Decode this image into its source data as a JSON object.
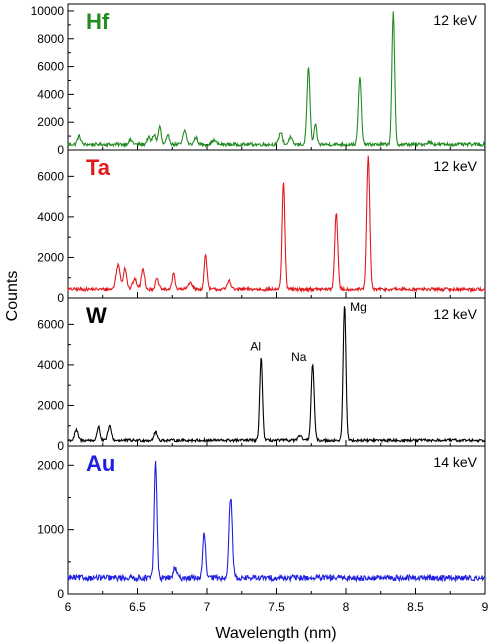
{
  "chart_data": [
    {
      "type": "line",
      "panel": "Hf",
      "element_label": "Hf",
      "energy": "12 keV",
      "color": "#228B22",
      "xlim": [
        6,
        9
      ],
      "ylim": [
        0,
        10500
      ],
      "yticks": [
        0,
        2000,
        4000,
        6000,
        8000,
        10000
      ],
      "baseline": 400,
      "noise": 120,
      "peaks": [
        {
          "x": 6.08,
          "y": 600,
          "w": 0.012
        },
        {
          "x": 6.45,
          "y": 300,
          "w": 0.015
        },
        {
          "x": 6.58,
          "y": 500,
          "w": 0.012
        },
        {
          "x": 6.62,
          "y": 700,
          "w": 0.012
        },
        {
          "x": 6.66,
          "y": 1300,
          "w": 0.01
        },
        {
          "x": 6.72,
          "y": 600,
          "w": 0.012
        },
        {
          "x": 6.84,
          "y": 1000,
          "w": 0.012
        },
        {
          "x": 6.92,
          "y": 500,
          "w": 0.012
        },
        {
          "x": 7.05,
          "y": 300,
          "w": 0.015
        },
        {
          "x": 7.53,
          "y": 900,
          "w": 0.012
        },
        {
          "x": 7.6,
          "y": 500,
          "w": 0.012
        },
        {
          "x": 7.73,
          "y": 5500,
          "w": 0.011
        },
        {
          "x": 7.78,
          "y": 1400,
          "w": 0.01
        },
        {
          "x": 8.1,
          "y": 4800,
          "w": 0.011
        },
        {
          "x": 8.34,
          "y": 9450,
          "w": 0.01
        },
        {
          "x": 8.6,
          "y": 150,
          "w": 0.02
        }
      ],
      "peak_labels": []
    },
    {
      "type": "line",
      "panel": "Ta",
      "element_label": "Ta",
      "energy": "12 keV",
      "color": "#E31A1C",
      "xlim": [
        6,
        9
      ],
      "ylim": [
        0,
        7300
      ],
      "yticks": [
        0,
        2000,
        4000,
        6000
      ],
      "baseline": 430,
      "noise": 80,
      "peaks": [
        {
          "x": 6.36,
          "y": 1200,
          "w": 0.015
        },
        {
          "x": 6.41,
          "y": 1050,
          "w": 0.012
        },
        {
          "x": 6.48,
          "y": 500,
          "w": 0.015
        },
        {
          "x": 6.54,
          "y": 1000,
          "w": 0.012
        },
        {
          "x": 6.64,
          "y": 500,
          "w": 0.012
        },
        {
          "x": 6.76,
          "y": 800,
          "w": 0.01
        },
        {
          "x": 6.88,
          "y": 350,
          "w": 0.015
        },
        {
          "x": 6.99,
          "y": 1700,
          "w": 0.01
        },
        {
          "x": 7.16,
          "y": 450,
          "w": 0.012
        },
        {
          "x": 7.55,
          "y": 5300,
          "w": 0.01
        },
        {
          "x": 7.93,
          "y": 3800,
          "w": 0.011
        },
        {
          "x": 8.16,
          "y": 6550,
          "w": 0.011
        }
      ],
      "peak_labels": []
    },
    {
      "type": "line",
      "panel": "W",
      "element_label": "W",
      "energy": "12 keV",
      "color": "#000000",
      "xlim": [
        6,
        9
      ],
      "ylim": [
        0,
        7300
      ],
      "yticks": [
        0,
        2000,
        4000,
        6000
      ],
      "baseline": 280,
      "noise": 70,
      "peaks": [
        {
          "x": 6.06,
          "y": 500,
          "w": 0.012
        },
        {
          "x": 6.22,
          "y": 700,
          "w": 0.01
        },
        {
          "x": 6.3,
          "y": 700,
          "w": 0.012
        },
        {
          "x": 6.63,
          "y": 400,
          "w": 0.012
        },
        {
          "x": 7.39,
          "y": 4100,
          "w": 0.01
        },
        {
          "x": 7.67,
          "y": 200,
          "w": 0.015
        },
        {
          "x": 7.76,
          "y": 3750,
          "w": 0.011
        },
        {
          "x": 7.99,
          "y": 6750,
          "w": 0.01
        }
      ],
      "peak_labels": [
        {
          "text": "Al",
          "x": 7.35,
          "y": 4700
        },
        {
          "text": "Na",
          "x": 7.66,
          "y": 4200
        },
        {
          "text": "Mg",
          "x": 8.09,
          "y": 6650
        }
      ]
    },
    {
      "type": "line",
      "panel": "Au",
      "element_label": "Au",
      "energy": "14 keV",
      "color": "#1F1FE0",
      "xlim": [
        6,
        9
      ],
      "ylim": [
        0,
        2300
      ],
      "yticks": [
        0,
        1000,
        2000
      ],
      "baseline": 250,
      "noise": 45,
      "peaks": [
        {
          "x": 6.63,
          "y": 1800,
          "w": 0.01
        },
        {
          "x": 6.77,
          "y": 150,
          "w": 0.012
        },
        {
          "x": 6.98,
          "y": 700,
          "w": 0.01
        },
        {
          "x": 7.17,
          "y": 1250,
          "w": 0.012
        }
      ],
      "peak_labels": []
    }
  ],
  "axes": {
    "xlabel": "Wavelength (nm)",
    "ylabel": "Counts",
    "xticks": [
      6,
      6.5,
      7,
      7.5,
      8,
      8.5,
      9
    ],
    "xtick_labels": [
      "6",
      "6.5",
      "7",
      "7.5",
      "8",
      "8.5",
      "9"
    ]
  }
}
